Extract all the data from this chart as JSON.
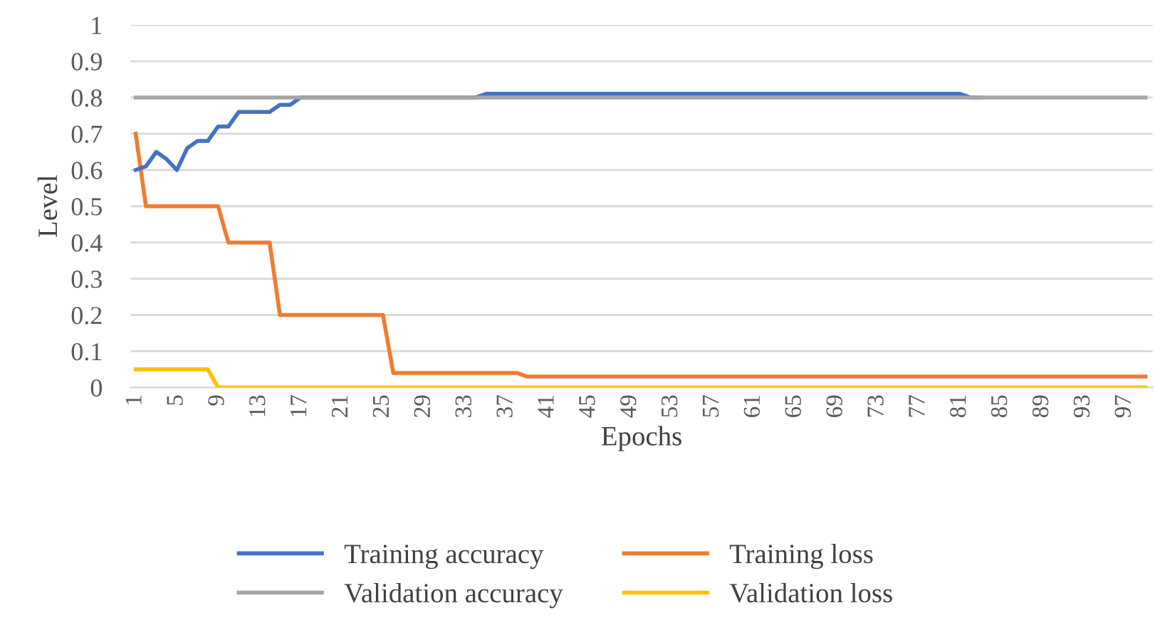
{
  "chart_data": {
    "type": "line",
    "xlabel": "Epochs",
    "ylabel": "Level",
    "categories": [
      "1",
      null,
      null,
      null,
      "5",
      null,
      null,
      null,
      "9",
      null,
      null,
      null,
      "13",
      null,
      null,
      null,
      "17",
      null,
      null,
      null,
      "21",
      null,
      null,
      null,
      "25",
      null,
      null,
      null,
      "29",
      null,
      null,
      null,
      "33",
      null,
      null,
      null,
      "37",
      null,
      null,
      null,
      "41",
      null,
      null,
      null,
      "45",
      null,
      null,
      null,
      "49",
      null,
      null,
      null,
      "53",
      null,
      null,
      null,
      "57",
      null,
      null,
      null,
      "61",
      null,
      null,
      null,
      "65",
      null,
      null,
      null,
      "69",
      null,
      null,
      null,
      "73",
      null,
      null,
      null,
      "77",
      null,
      null,
      null,
      "81",
      null,
      null,
      null,
      "85",
      null,
      null,
      null,
      "89",
      null,
      null,
      null,
      "93",
      null,
      null,
      null,
      "97",
      null,
      null
    ],
    "series": [
      {
        "name": "Training accuracy",
        "color": "#4472c4",
        "values": [
          0.6,
          0.61,
          0.65,
          0.63,
          0.6,
          0.66,
          0.68,
          0.68,
          0.72,
          0.72,
          0.76,
          0.76,
          0.76,
          0.76,
          0.78,
          0.78,
          0.8,
          0.8,
          0.8,
          0.8,
          0.8,
          0.8,
          0.8,
          0.8,
          0.8,
          0.8,
          0.8,
          0.8,
          0.8,
          0.8,
          0.8,
          0.8,
          0.8,
          0.8,
          0.81,
          0.81,
          0.81,
          0.81,
          0.81,
          0.81,
          0.81,
          0.81,
          0.81,
          0.81,
          0.81,
          0.81,
          0.81,
          0.81,
          0.81,
          0.81,
          0.81,
          0.81,
          0.81,
          0.81,
          0.81,
          0.81,
          0.81,
          0.81,
          0.81,
          0.81,
          0.81,
          0.81,
          0.81,
          0.81,
          0.81,
          0.81,
          0.81,
          0.81,
          0.81,
          0.81,
          0.81,
          0.81,
          0.81,
          0.81,
          0.81,
          0.81,
          0.81,
          0.81,
          0.81,
          0.81,
          0.81,
          0.8,
          0.8,
          null,
          null,
          null,
          null,
          null,
          null,
          null,
          null,
          null,
          null,
          null,
          null,
          null,
          null,
          null,
          null
        ]
      },
      {
        "name": "Training loss",
        "color": "#ed7d31",
        "values": [
          0.7,
          0.5,
          0.5,
          0.5,
          0.5,
          0.5,
          0.5,
          0.5,
          0.5,
          0.4,
          0.4,
          0.4,
          0.4,
          0.4,
          0.2,
          0.2,
          0.2,
          0.2,
          0.2,
          0.2,
          0.2,
          0.2,
          0.2,
          0.2,
          0.2,
          0.04,
          0.04,
          0.04,
          0.04,
          0.04,
          0.04,
          0.04,
          0.04,
          0.04,
          0.04,
          0.04,
          0.04,
          0.04,
          0.03,
          0.03,
          0.03,
          0.03,
          0.03,
          0.03,
          0.03,
          0.03,
          0.03,
          0.03,
          0.03,
          0.03,
          0.03,
          0.03,
          0.03,
          0.03,
          0.03,
          0.03,
          0.03,
          0.03,
          0.03,
          0.03,
          0.03,
          0.03,
          0.03,
          0.03,
          0.03,
          0.03,
          0.03,
          0.03,
          0.03,
          0.03,
          0.03,
          0.03,
          0.03,
          0.03,
          0.03,
          0.03,
          0.03,
          0.03,
          0.03,
          0.03,
          0.03,
          0.03,
          0.03,
          0.03,
          0.03,
          0.03,
          0.03,
          0.03,
          0.03,
          0.03,
          0.03,
          0.03,
          0.03,
          0.03,
          0.03,
          0.03,
          0.03,
          0.03,
          0.03
        ]
      },
      {
        "name": "Validation accuracy",
        "color": "#a5a5a5",
        "values": [
          0.8,
          0.8,
          0.8,
          0.8,
          0.8,
          0.8,
          0.8,
          0.8,
          0.8,
          0.8,
          0.8,
          0.8,
          0.8,
          0.8,
          0.8,
          0.8,
          0.8,
          0.8,
          0.8,
          0.8,
          0.8,
          0.8,
          0.8,
          0.8,
          0.8,
          0.8,
          0.8,
          0.8,
          0.8,
          0.8,
          0.8,
          0.8,
          0.8,
          0.8,
          0.8,
          0.8,
          0.8,
          0.8,
          0.8,
          0.8,
          0.8,
          0.8,
          0.8,
          0.8,
          0.8,
          0.8,
          0.8,
          0.8,
          0.8,
          0.8,
          0.8,
          0.8,
          0.8,
          0.8,
          0.8,
          0.8,
          0.8,
          0.8,
          0.8,
          0.8,
          0.8,
          0.8,
          0.8,
          0.8,
          0.8,
          0.8,
          0.8,
          0.8,
          0.8,
          0.8,
          0.8,
          0.8,
          0.8,
          0.8,
          0.8,
          0.8,
          0.8,
          0.8,
          0.8,
          0.8,
          0.8,
          0.8,
          0.8,
          0.8,
          0.8,
          0.8,
          0.8,
          0.8,
          0.8,
          0.8,
          0.8,
          0.8,
          0.8,
          0.8,
          0.8,
          0.8,
          0.8,
          0.8,
          0.8
        ]
      },
      {
        "name": "Validation loss",
        "color": "#ffc000",
        "values": [
          0.05,
          0.05,
          0.05,
          0.05,
          0.05,
          0.05,
          0.05,
          0.05,
          0.0,
          0.0,
          0.0,
          0.0,
          0.0,
          0.0,
          0.0,
          0.0,
          0.0,
          0.0,
          0.0,
          0.0,
          0.0,
          0.0,
          0.0,
          0.0,
          0.0,
          0.0,
          0.0,
          0.0,
          0.0,
          0.0,
          0.0,
          0.0,
          0.0,
          0.0,
          0.0,
          0.0,
          0.0,
          0.0,
          0.0,
          0.0,
          0.0,
          0.0,
          0.0,
          0.0,
          0.0,
          0.0,
          0.0,
          0.0,
          0.0,
          0.0,
          0.0,
          0.0,
          0.0,
          0.0,
          0.0,
          0.0,
          0.0,
          0.0,
          0.0,
          0.0,
          0.0,
          0.0,
          0.0,
          0.0,
          0.0,
          0.0,
          0.0,
          0.0,
          0.0,
          0.0,
          0.0,
          0.0,
          0.0,
          0.0,
          0.0,
          0.0,
          0.0,
          0.0,
          0.0,
          0.0,
          0.0,
          0.0,
          0.0,
          0.0,
          0.0,
          0.0,
          0.0,
          0.0,
          0.0,
          0.0,
          0.0,
          0.0,
          0.0,
          0.0,
          0.0,
          0.0,
          0.0,
          0.0,
          0.0
        ]
      }
    ],
    "ylim": [
      0,
      1
    ],
    "yticks": [
      0,
      0.1,
      0.2,
      0.3,
      0.4,
      0.5,
      0.6,
      0.7,
      0.8,
      0.9,
      1
    ],
    "grid": "y",
    "legend": "bottom",
    "marker": "none",
    "line_style": "solid"
  }
}
